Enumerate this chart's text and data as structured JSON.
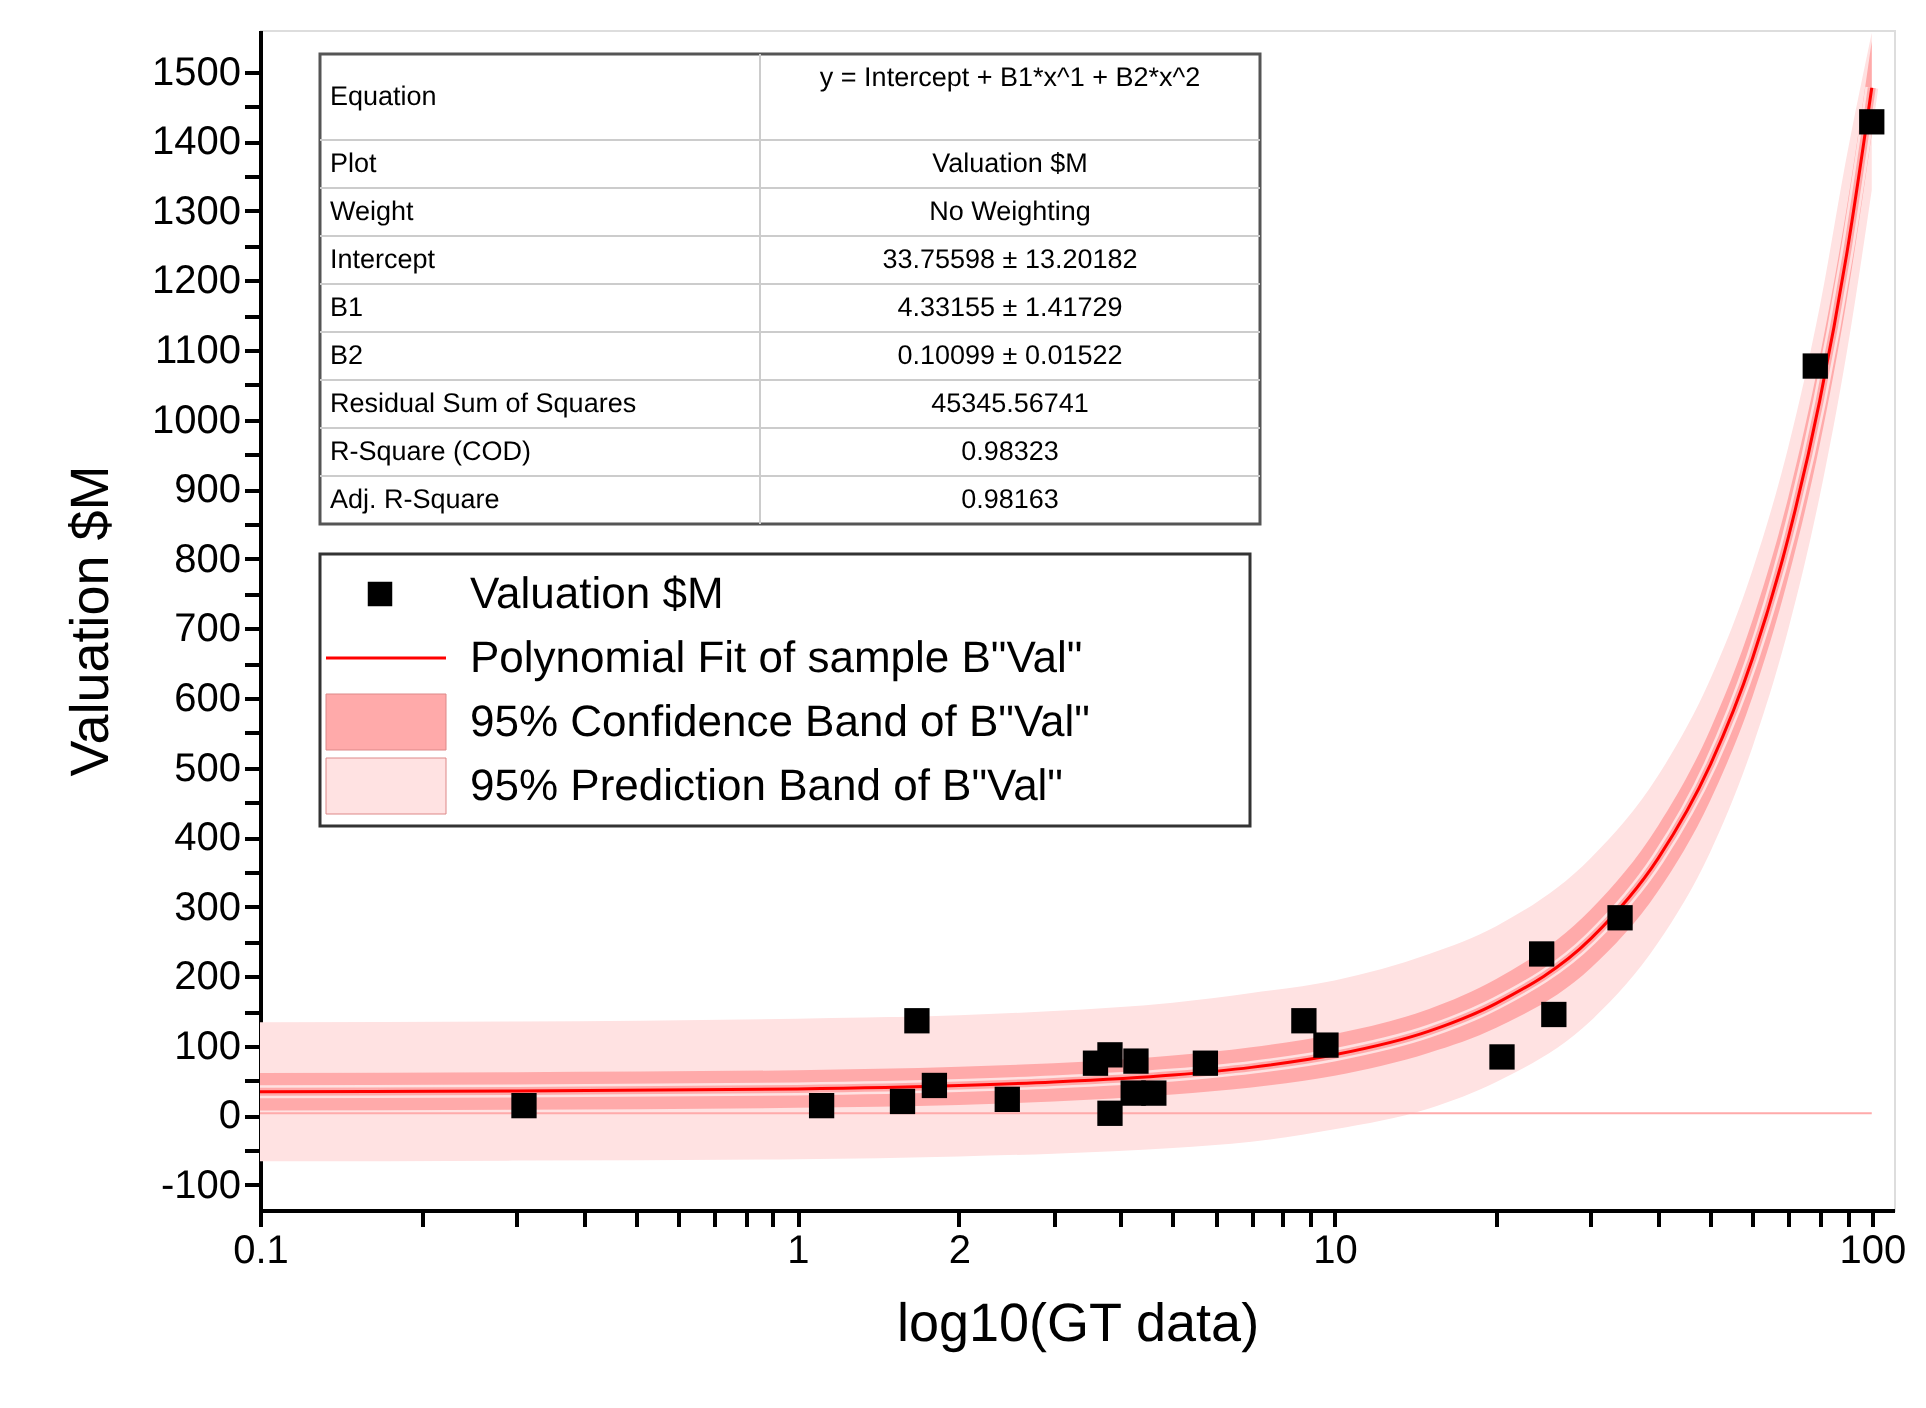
{
  "chart_data": {
    "type": "scatter",
    "xlabel": "log10(GT data)",
    "ylabel": "Valuation $M",
    "log": "x",
    "grid": false,
    "legend": "left",
    "xlim": [
      0.1,
      110
    ],
    "ylim": [
      -136,
      1560
    ],
    "xticks": [
      {
        "value": 0.1,
        "label": "0.1"
      },
      {
        "value": 0.2,
        "label": null
      },
      {
        "value": 0.3,
        "label": null
      },
      {
        "value": 0.4,
        "label": null
      },
      {
        "value": 0.5,
        "label": null
      },
      {
        "value": 0.6,
        "label": null
      },
      {
        "value": 0.7,
        "label": null
      },
      {
        "value": 0.8,
        "label": null
      },
      {
        "value": 0.9,
        "label": null
      },
      1,
      2,
      {
        "value": 3,
        "label": null
      },
      {
        "value": 4,
        "label": null
      },
      {
        "value": 5,
        "label": null
      },
      {
        "value": 6,
        "label": null
      },
      {
        "value": 7,
        "label": null
      },
      {
        "value": 8,
        "label": null
      },
      {
        "value": 9,
        "label": null
      },
      10,
      {
        "value": 20,
        "label": null
      },
      {
        "value": 30,
        "label": null
      },
      {
        "value": 40,
        "label": null
      },
      {
        "value": 50,
        "label": null
      },
      {
        "value": 60,
        "label": null
      },
      {
        "value": 70,
        "label": null
      },
      {
        "value": 80,
        "label": null
      },
      {
        "value": 90,
        "label": null
      },
      100
    ],
    "yticks": [
      -100,
      {
        "value": -50,
        "label": null
      },
      0,
      {
        "value": 50,
        "label": null
      },
      100,
      {
        "value": 150,
        "label": null
      },
      200,
      {
        "value": 250,
        "label": null
      },
      300,
      {
        "value": 350,
        "label": null
      },
      400,
      {
        "value": 450,
        "label": null
      },
      500,
      {
        "value": 550,
        "label": null
      },
      600,
      {
        "value": 650,
        "label": null
      },
      700,
      {
        "value": 750,
        "label": null
      },
      800,
      {
        "value": 850,
        "label": null
      },
      900,
      {
        "value": 950,
        "label": null
      },
      1000,
      {
        "value": 1050,
        "label": null
      },
      1100,
      {
        "value": 1150,
        "label": null
      },
      1200,
      {
        "value": 1250,
        "label": null
      },
      1300,
      {
        "value": 1350,
        "label": null
      },
      1400,
      {
        "value": 1450,
        "label": null
      },
      1500
    ],
    "series": [
      {
        "name": "95% Prediction Band of B\"Val\"",
        "type": "line",
        "color": "#ffe2e2",
        "x": [
          0.1,
          0.3,
          1,
          2,
          3,
          5,
          7,
          10,
          15,
          20,
          30,
          40,
          50,
          60,
          70,
          80,
          90,
          100
        ],
        "values": [
          34,
          35,
          38,
          43,
          48,
          58,
          69,
          87,
          121,
          161,
          254,
          369,
          503,
          657,
          832,
          1027,
          1242,
          1477
        ],
        "lower": [
          -66,
          -65,
          -63,
          -59,
          -55,
          -47,
          -38,
          -20,
          10,
          48,
          136,
          248,
          378,
          530,
          700,
          890,
          1100,
          1330
        ],
        "upper": [
          134,
          135,
          139,
          144,
          150,
          162,
          176,
          194,
          232,
          272,
          370,
          488,
          626,
          784,
          962,
          1162,
          1382,
          1556
        ]
      },
      {
        "name": "95% Confidence Band of B\"Val\"",
        "type": "line",
        "color": "#ffaaaa",
        "x": [
          0.1,
          0.3,
          1,
          2,
          3,
          5,
          7,
          10,
          15,
          20,
          30,
          40,
          50,
          60,
          70,
          80,
          90,
          100
        ],
        "values": [
          34,
          35,
          38,
          43,
          48,
          58,
          69,
          87,
          121,
          161,
          254,
          369,
          503,
          657,
          832,
          1027,
          1242,
          1477
        ],
        "lower": [
          7,
          8,
          11,
          15,
          20,
          30,
          40,
          57,
          90,
          126,
          212,
          322,
          452,
          602,
          774,
          964,
          1176,
          1410
        ],
        "upper": [
          61,
          62,
          65,
          70,
          75,
          86,
          98,
          117,
          153,
          196,
          296,
          416,
          554,
          712,
          890,
          1090,
          1308,
          1544
        ]
      },
      {
        "name": "Polynomial Fit of sample B\"Val\"",
        "type": "line",
        "color": "#ff0000",
        "x": [
          0.1,
          0.3,
          1,
          2,
          3,
          5,
          7,
          10,
          15,
          20,
          30,
          40,
          50,
          60,
          70,
          80,
          90,
          100
        ],
        "values": [
          34,
          35,
          38,
          43,
          48,
          58,
          69,
          87,
          121,
          161,
          254,
          369,
          503,
          657,
          832,
          1027,
          1242,
          1477
        ]
      },
      {
        "name": "Valuation $M",
        "type": "scatter",
        "marker": "square",
        "color": "#000000",
        "x": [
          0.31,
          1.11,
          1.57,
          1.67,
          1.8,
          2.46,
          3.59,
          3.82,
          3.82,
          4.27,
          4.22,
          4.61,
          5.75,
          8.77,
          9.64,
          20.5,
          24.3,
          25.6,
          34.0,
          78.5,
          100
        ],
        "values": [
          14,
          14,
          20,
          136,
          43,
          23,
          75,
          87,
          3,
          78,
          32,
          32,
          75,
          136,
          101,
          84,
          232,
          145,
          284,
          1077,
          1428
        ]
      }
    ],
    "ref_lines": [
      {
        "axis": "y",
        "value": 3,
        "color": "#ffaaaa",
        "label": null
      }
    ],
    "annotations": [
      "Equation",
      "y = Intercept + B1*x^1 + B2*x^2",
      "Plot",
      "Valuation $M",
      "Weight",
      "No Weighting",
      "Intercept",
      "33.75598 ± 13.20182",
      "B1",
      "4.33155 ± 1.41729",
      "B2",
      "0.10099 ± 0.01522",
      "Residual Sum of Squares",
      "45345.56741",
      "R-Square (COD)",
      "0.98323",
      "Adj. R-Square",
      "0.98163"
    ]
  }
}
